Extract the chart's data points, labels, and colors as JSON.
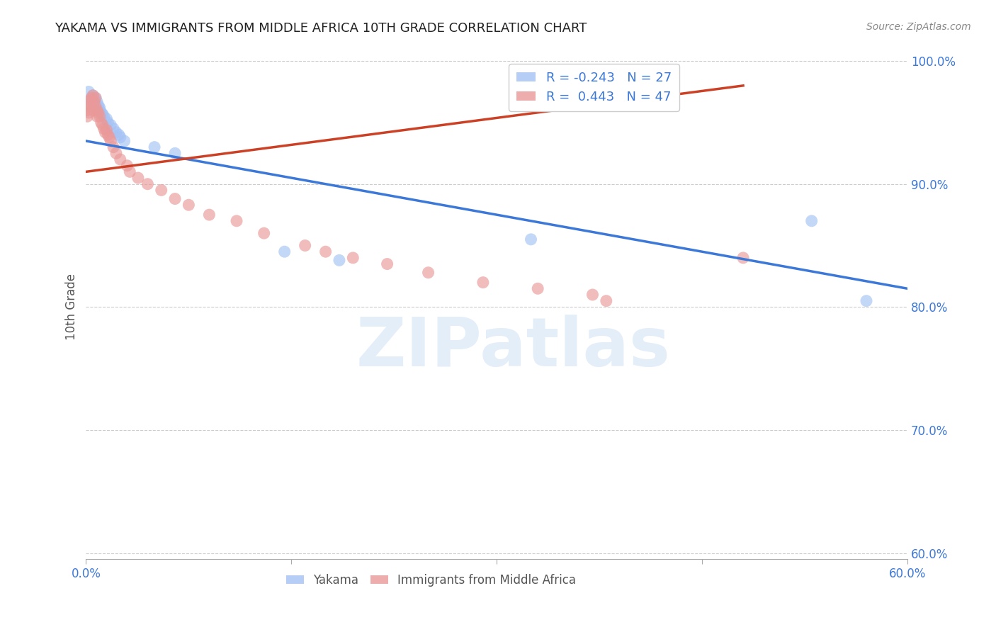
{
  "title": "YAKAMA VS IMMIGRANTS FROM MIDDLE AFRICA 10TH GRADE CORRELATION CHART",
  "source": "Source: ZipAtlas.com",
  "ylabel": "10th Grade",
  "ylabel_right_ticks": [
    "100.0%",
    "90.0%",
    "80.0%",
    "70.0%",
    "60.0%"
  ],
  "ylabel_right_vals": [
    1.0,
    0.9,
    0.8,
    0.7,
    0.6
  ],
  "legend1_label": "R = -0.243   N = 27",
  "legend2_label": "R =  0.443   N = 47",
  "blue_color": "#a4c2f4",
  "pink_color": "#ea9999",
  "blue_line_color": "#3c78d8",
  "pink_line_color": "#cc4125",
  "watermark_text": "ZIPatlas",
  "xlim": [
    0.0,
    0.6
  ],
  "ylim": [
    0.595,
    1.005
  ],
  "blue_line_x": [
    0.0,
    0.6
  ],
  "blue_line_y": [
    0.935,
    0.815
  ],
  "pink_line_x": [
    0.0,
    0.48
  ],
  "pink_line_y": [
    0.91,
    0.98
  ],
  "yakama_x": [
    0.002,
    0.004,
    0.005,
    0.006,
    0.007,
    0.008,
    0.009,
    0.01,
    0.01,
    0.011,
    0.012,
    0.013,
    0.015,
    0.016,
    0.018,
    0.02,
    0.022,
    0.024,
    0.025,
    0.028,
    0.05,
    0.065,
    0.145,
    0.185,
    0.325,
    0.53,
    0.57
  ],
  "yakama_y": [
    0.975,
    0.968,
    0.972,
    0.965,
    0.97,
    0.967,
    0.964,
    0.962,
    0.96,
    0.958,
    0.957,
    0.955,
    0.953,
    0.95,
    0.948,
    0.945,
    0.942,
    0.94,
    0.938,
    0.935,
    0.93,
    0.925,
    0.845,
    0.838,
    0.855,
    0.87,
    0.805
  ],
  "pink_x": [
    0.001,
    0.001,
    0.002,
    0.002,
    0.003,
    0.003,
    0.004,
    0.005,
    0.005,
    0.006,
    0.007,
    0.007,
    0.008,
    0.008,
    0.009,
    0.01,
    0.011,
    0.012,
    0.013,
    0.014,
    0.015,
    0.016,
    0.017,
    0.018,
    0.02,
    0.022,
    0.025,
    0.03,
    0.032,
    0.038,
    0.045,
    0.055,
    0.065,
    0.075,
    0.09,
    0.11,
    0.13,
    0.16,
    0.175,
    0.195,
    0.22,
    0.25,
    0.29,
    0.33,
    0.37,
    0.38,
    0.48
  ],
  "pink_y": [
    0.96,
    0.955,
    0.965,
    0.958,
    0.968,
    0.963,
    0.97,
    0.972,
    0.96,
    0.967,
    0.97,
    0.963,
    0.96,
    0.955,
    0.958,
    0.955,
    0.95,
    0.948,
    0.945,
    0.942,
    0.944,
    0.94,
    0.938,
    0.935,
    0.93,
    0.925,
    0.92,
    0.915,
    0.91,
    0.905,
    0.9,
    0.895,
    0.888,
    0.883,
    0.875,
    0.87,
    0.86,
    0.85,
    0.845,
    0.84,
    0.835,
    0.828,
    0.82,
    0.815,
    0.81,
    0.805,
    0.84
  ]
}
